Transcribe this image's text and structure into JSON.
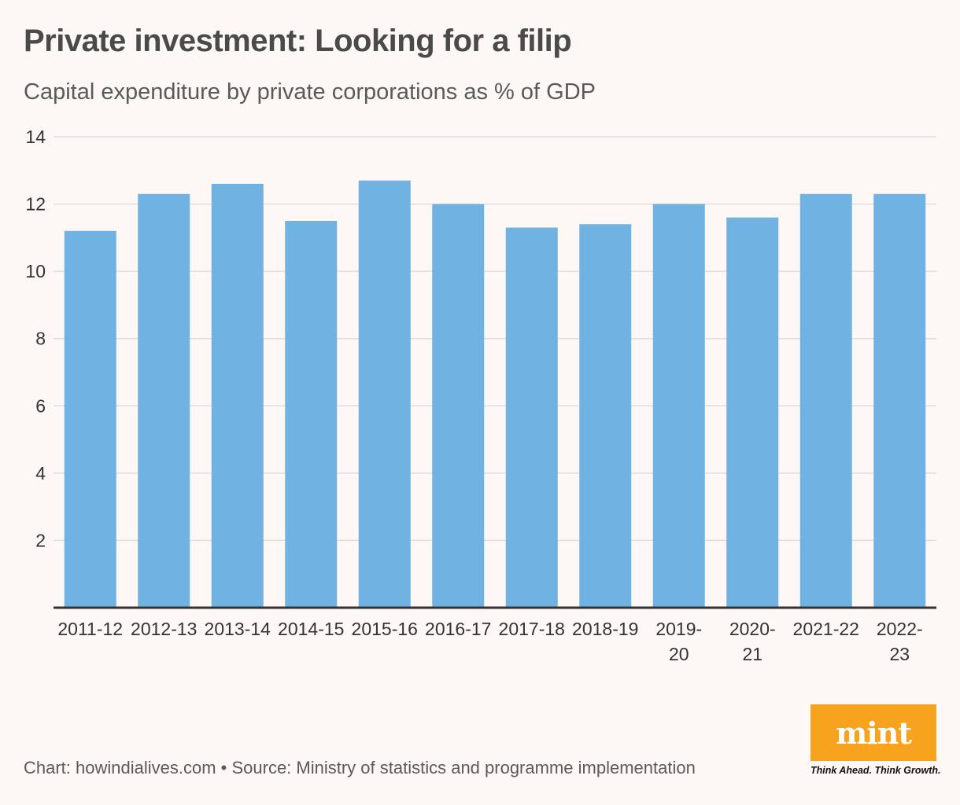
{
  "header": {
    "title": "Private investment: Looking for a filip",
    "subtitle": "Capital expenditure by private corporations as % of GDP"
  },
  "footer": {
    "source": "Chart: howindialives.com • Source: Ministry of statistics and programme implementation"
  },
  "logo": {
    "name": "mint",
    "tagline": "Think Ahead. Think Growth."
  },
  "colors": {
    "bar": "#70b2e2",
    "grid": "#dddddd",
    "axis": "#333333",
    "logo_bg": "#f8a31d"
  },
  "chart_data": {
    "type": "bar",
    "title": "Private investment: Looking for a filip",
    "subtitle": "Capital expenditure by private corporations as % of GDP",
    "xlabel": "",
    "ylabel": "",
    "ylim": [
      0,
      14
    ],
    "yticks": [
      2,
      4,
      6,
      8,
      10,
      12,
      14
    ],
    "grid": true,
    "categories": [
      "2011-12",
      "2012-13",
      "2013-14",
      "2014-15",
      "2015-16",
      "2016-17",
      "2017-18",
      "2018-19",
      "2019-20",
      "2020-21",
      "2021-22",
      "2022-23"
    ],
    "category_labels": [
      [
        "2011-12"
      ],
      [
        "2012-13"
      ],
      [
        "2013-14"
      ],
      [
        "2014-15"
      ],
      [
        "2015-16"
      ],
      [
        "2016-17"
      ],
      [
        "2017-18"
      ],
      [
        "2018-19"
      ],
      [
        "2019-",
        "20"
      ],
      [
        "2020-",
        "21"
      ],
      [
        "2021-22"
      ],
      [
        "2022-",
        "23"
      ]
    ],
    "values": [
      11.2,
      12.3,
      12.6,
      11.5,
      12.7,
      12.0,
      11.3,
      11.4,
      12.0,
      11.6,
      12.3,
      12.3
    ]
  }
}
